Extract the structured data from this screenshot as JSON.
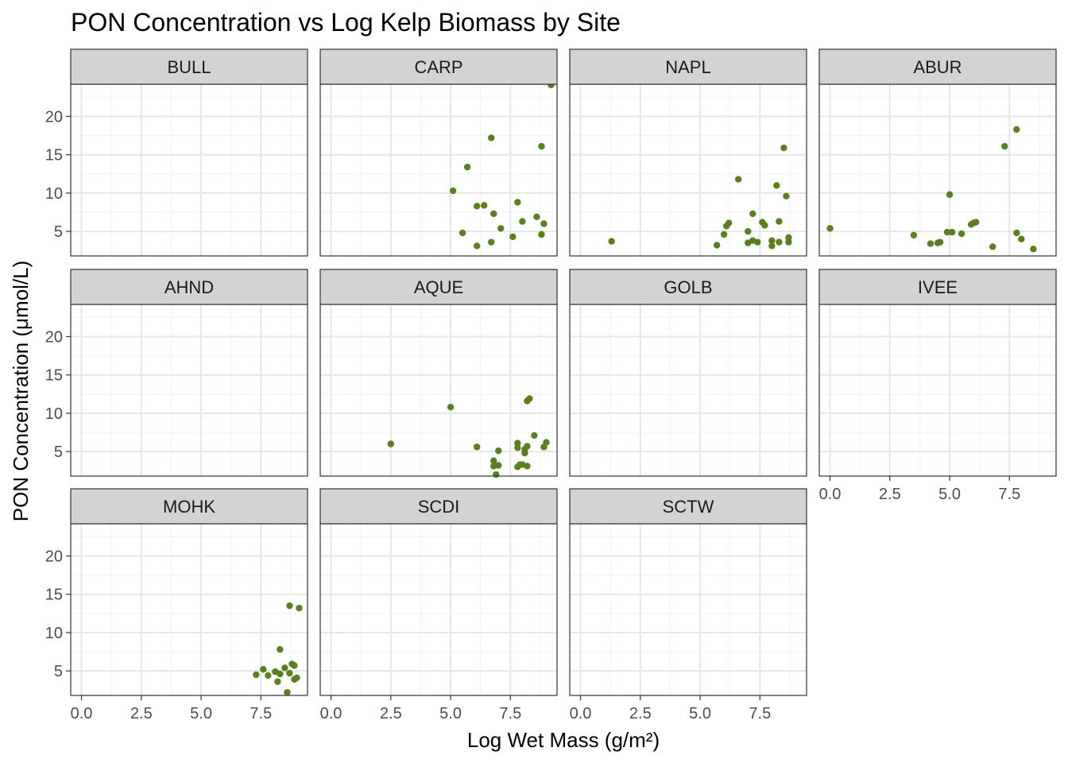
{
  "chart_data": {
    "type": "scatter",
    "title": "PON Concentration vs Log Kelp Biomass by Site",
    "xlabel": "Log Wet Mass (g/m²)",
    "ylabel": "PON Concentration (μmol/L)",
    "xlim": [
      -0.45,
      9.45
    ],
    "ylim": [
      1.8,
      24.2
    ],
    "x_ticks": [
      0,
      2.5,
      5,
      7.5
    ],
    "x_tick_labels": [
      "0.0",
      "2.5",
      "5.0",
      "7.5"
    ],
    "y_ticks": [
      5,
      10,
      15,
      20
    ],
    "y_tick_labels": [
      "5",
      "10",
      "15",
      "20"
    ],
    "grid": true,
    "point_color": "#5a7f1f",
    "panel_strip_color": "#d3d3d3",
    "panels": [
      {
        "name": "BULL",
        "points": []
      },
      {
        "name": "CARP",
        "points": [
          [
            9.2,
            24.1
          ],
          [
            6.7,
            17.2
          ],
          [
            8.8,
            16.1
          ],
          [
            5.7,
            13.4
          ],
          [
            5.1,
            10.3
          ],
          [
            6.1,
            8.3
          ],
          [
            6.4,
            8.4
          ],
          [
            7.8,
            8.8
          ],
          [
            6.8,
            7.3
          ],
          [
            8.6,
            6.9
          ],
          [
            8.0,
            6.3
          ],
          [
            8.9,
            6.0
          ],
          [
            5.5,
            4.8
          ],
          [
            7.1,
            5.4
          ],
          [
            7.6,
            4.3
          ],
          [
            6.7,
            3.6
          ],
          [
            6.1,
            3.1
          ],
          [
            8.8,
            4.6
          ]
        ]
      },
      {
        "name": "NAPL",
        "points": [
          [
            1.3,
            3.7
          ],
          [
            5.7,
            3.2
          ],
          [
            6.0,
            4.6
          ],
          [
            6.1,
            5.7
          ],
          [
            6.2,
            6.1
          ],
          [
            6.6,
            11.8
          ],
          [
            7.0,
            3.5
          ],
          [
            7.0,
            5.0
          ],
          [
            7.2,
            7.3
          ],
          [
            7.2,
            3.8
          ],
          [
            7.4,
            3.6
          ],
          [
            7.6,
            6.2
          ],
          [
            7.7,
            5.8
          ],
          [
            8.0,
            3.1
          ],
          [
            8.0,
            3.8
          ],
          [
            8.2,
            11.0
          ],
          [
            8.3,
            6.3
          ],
          [
            8.3,
            3.6
          ],
          [
            8.5,
            15.9
          ],
          [
            8.6,
            9.6
          ],
          [
            8.7,
            3.6
          ],
          [
            8.7,
            4.2
          ]
        ]
      },
      {
        "name": "ABUR",
        "points": [
          [
            0.0,
            5.4
          ],
          [
            3.5,
            4.5
          ],
          [
            4.2,
            3.4
          ],
          [
            4.5,
            3.5
          ],
          [
            4.6,
            3.6
          ],
          [
            4.9,
            4.9
          ],
          [
            5.0,
            9.8
          ],
          [
            5.1,
            4.9
          ],
          [
            5.5,
            4.7
          ],
          [
            5.9,
            5.9
          ],
          [
            6.0,
            6.1
          ],
          [
            6.1,
            6.2
          ],
          [
            6.8,
            3.0
          ],
          [
            7.3,
            16.1
          ],
          [
            7.8,
            18.3
          ],
          [
            7.8,
            4.8
          ],
          [
            8.0,
            4.0
          ],
          [
            8.5,
            2.7
          ]
        ]
      },
      {
        "name": "AHND",
        "points": []
      },
      {
        "name": "AQUE",
        "points": [
          [
            2.5,
            6.0
          ],
          [
            5.0,
            10.8
          ],
          [
            6.1,
            5.6
          ],
          [
            6.8,
            3.1
          ],
          [
            6.8,
            3.8
          ],
          [
            6.9,
            2.0
          ],
          [
            7.0,
            3.2
          ],
          [
            7.0,
            5.1
          ],
          [
            7.8,
            3.0
          ],
          [
            7.8,
            6.1
          ],
          [
            7.8,
            5.5
          ],
          [
            7.9,
            3.3
          ],
          [
            8.0,
            3.3
          ],
          [
            8.1,
            5.3
          ],
          [
            8.1,
            4.8
          ],
          [
            8.2,
            11.6
          ],
          [
            8.2,
            5.7
          ],
          [
            8.2,
            3.1
          ],
          [
            8.3,
            11.9
          ],
          [
            8.5,
            7.1
          ],
          [
            8.9,
            5.6
          ],
          [
            9.0,
            6.2
          ]
        ]
      },
      {
        "name": "GOLB",
        "points": []
      },
      {
        "name": "IVEE",
        "points": []
      },
      {
        "name": "MOHK",
        "points": [
          [
            7.3,
            4.5
          ],
          [
            7.6,
            5.2
          ],
          [
            7.8,
            4.4
          ],
          [
            8.1,
            4.9
          ],
          [
            8.2,
            3.6
          ],
          [
            8.3,
            7.8
          ],
          [
            8.3,
            4.6
          ],
          [
            8.5,
            5.4
          ],
          [
            8.6,
            2.2
          ],
          [
            8.7,
            13.5
          ],
          [
            8.7,
            4.7
          ],
          [
            8.8,
            5.9
          ],
          [
            8.9,
            5.7
          ],
          [
            8.9,
            3.9
          ],
          [
            9.0,
            4.1
          ],
          [
            9.1,
            13.2
          ]
        ]
      },
      {
        "name": "SCDI",
        "points": []
      },
      {
        "name": "SCTW",
        "points": []
      }
    ]
  }
}
